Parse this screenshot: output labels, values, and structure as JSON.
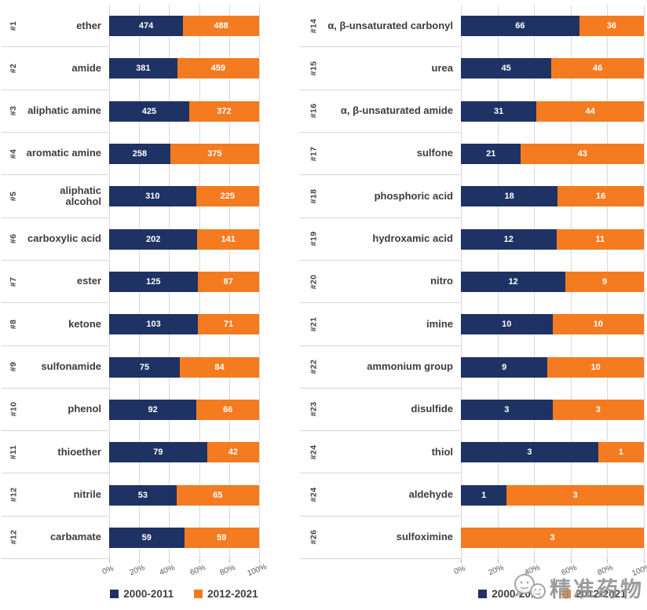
{
  "colors": {
    "navy": "#1E3264",
    "orange": "#F47B20",
    "grid": "#D9D9D9",
    "label_text": "#3D3D3D",
    "axis_text": "#595959",
    "watermark_gray": "#8E8E8E"
  },
  "legend": {
    "items": [
      {
        "label": "2000-2011",
        "color_key": "navy"
      },
      {
        "label": "2012-2021",
        "color_key": "orange"
      }
    ]
  },
  "x_axis": {
    "ticks": [
      "0%",
      "20%",
      "40%",
      "60%",
      "80%",
      "100%"
    ]
  },
  "watermark": {
    "text": "精准药物",
    "logo": "chat-mascot-logo"
  },
  "chart_data": [
    {
      "type": "bar",
      "orientation": "horizontal",
      "stacking": "percent",
      "title": "",
      "xlabel": "",
      "ylabel": "",
      "xlim": [
        0,
        100
      ],
      "grid": true,
      "legend_position": "bottom",
      "series_names": [
        "2000-2011",
        "2012-2021"
      ],
      "x_ticks": [
        "0%",
        "20%",
        "40%",
        "60%",
        "80%",
        "100%"
      ],
      "rows": [
        {
          "rank": "#1",
          "label": "ether",
          "values": [
            474,
            488
          ]
        },
        {
          "rank": "#2",
          "label": "amide",
          "values": [
            381,
            459
          ]
        },
        {
          "rank": "#3",
          "label": "aliphatic amine",
          "values": [
            425,
            372
          ]
        },
        {
          "rank": "#4",
          "label": "aromatic amine",
          "values": [
            258,
            375
          ]
        },
        {
          "rank": "#5",
          "label": "aliphatic alcohol",
          "values": [
            310,
            225
          ]
        },
        {
          "rank": "#6",
          "label": "carboxylic acid",
          "values": [
            202,
            141
          ]
        },
        {
          "rank": "#7",
          "label": "ester",
          "values": [
            125,
            87
          ]
        },
        {
          "rank": "#8",
          "label": "ketone",
          "values": [
            103,
            71
          ]
        },
        {
          "rank": "#9",
          "label": "sulfonamide",
          "values": [
            75,
            84
          ]
        },
        {
          "rank": "#10",
          "label": "phenol",
          "values": [
            92,
            66
          ]
        },
        {
          "rank": "#11",
          "label": "thioether",
          "values": [
            79,
            42
          ]
        },
        {
          "rank": "#12",
          "label": "nitrile",
          "values": [
            53,
            65
          ]
        },
        {
          "rank": "#12",
          "label": "carbamate",
          "values": [
            59,
            59
          ]
        }
      ]
    },
    {
      "type": "bar",
      "orientation": "horizontal",
      "stacking": "percent",
      "title": "",
      "xlabel": "",
      "ylabel": "",
      "xlim": [
        0,
        100
      ],
      "grid": true,
      "legend_position": "bottom",
      "series_names": [
        "2000-2011",
        "2012-2021"
      ],
      "x_ticks": [
        "0%",
        "20%",
        "40%",
        "60%",
        "80%",
        "100%"
      ],
      "rows": [
        {
          "rank": "#14",
          "label": "α, β-unsaturated carbonyl",
          "values": [
            66,
            36
          ]
        },
        {
          "rank": "#15",
          "label": "urea",
          "values": [
            45,
            46
          ]
        },
        {
          "rank": "#16",
          "label": "α, β-unsaturated amide",
          "values": [
            31,
            44
          ]
        },
        {
          "rank": "#17",
          "label": "sulfone",
          "values": [
            21,
            43
          ]
        },
        {
          "rank": "#18",
          "label": "phosphoric acid",
          "values": [
            18,
            16
          ]
        },
        {
          "rank": "#19",
          "label": "hydroxamic acid",
          "values": [
            12,
            11
          ]
        },
        {
          "rank": "#20",
          "label": "nitro",
          "values": [
            12,
            9
          ]
        },
        {
          "rank": "#21",
          "label": "imine",
          "values": [
            10,
            10
          ]
        },
        {
          "rank": "#22",
          "label": "ammonium group",
          "values": [
            9,
            10
          ]
        },
        {
          "rank": "#23",
          "label": "disulfide",
          "values": [
            3,
            3
          ]
        },
        {
          "rank": "#24",
          "label": "thiol",
          "values": [
            3,
            1
          ]
        },
        {
          "rank": "#24",
          "label": "aldehyde",
          "values": [
            1,
            3
          ]
        },
        {
          "rank": "#26",
          "label": "sulfoximine",
          "values": [
            0,
            3
          ]
        }
      ]
    }
  ]
}
